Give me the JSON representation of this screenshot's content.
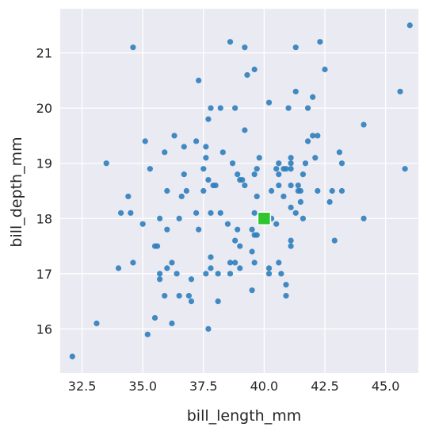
{
  "chart_data": {
    "type": "scatter",
    "xlabel": "bill_length_mm",
    "ylabel": "bill_depth_mm",
    "xlim": [
      31.6,
      46.35
    ],
    "ylim": [
      15.2,
      21.8
    ],
    "xticks": [
      32.5,
      35.0,
      37.5,
      40.0,
      42.5,
      45.0
    ],
    "xtick_labels": [
      "32.5",
      "35.0",
      "37.5",
      "40.0",
      "42.5",
      "45.0"
    ],
    "yticks": [
      16,
      17,
      18,
      19,
      20,
      21
    ],
    "ytick_labels": [
      "16",
      "17",
      "18",
      "19",
      "20",
      "21"
    ],
    "grid": true,
    "background": "#eaeaf2",
    "point_color": "#2f7ebc",
    "highlight_color": "#2ec52e",
    "highlight": {
      "x": 40.0,
      "y": 18.0
    },
    "points": [
      [
        32.1,
        15.5
      ],
      [
        33.1,
        16.1
      ],
      [
        33.5,
        19.0
      ],
      [
        34.0,
        17.1
      ],
      [
        34.1,
        18.1
      ],
      [
        34.4,
        18.4
      ],
      [
        34.5,
        18.1
      ],
      [
        34.6,
        17.2
      ],
      [
        34.6,
        21.1
      ],
      [
        35.0,
        17.9
      ],
      [
        35.1,
        19.4
      ],
      [
        35.2,
        15.9
      ],
      [
        35.3,
        18.9
      ],
      [
        35.5,
        16.2
      ],
      [
        35.5,
        17.5
      ],
      [
        35.6,
        17.5
      ],
      [
        35.7,
        16.9
      ],
      [
        35.7,
        17.0
      ],
      [
        35.7,
        18.0
      ],
      [
        35.9,
        16.6
      ],
      [
        35.9,
        19.2
      ],
      [
        36.0,
        17.1
      ],
      [
        36.0,
        17.8
      ],
      [
        36.0,
        18.5
      ],
      [
        36.2,
        16.1
      ],
      [
        36.2,
        17.2
      ],
      [
        36.3,
        19.5
      ],
      [
        36.4,
        17.0
      ],
      [
        36.5,
        16.6
      ],
      [
        36.5,
        18.0
      ],
      [
        36.6,
        18.4
      ],
      [
        36.7,
        18.8
      ],
      [
        36.7,
        19.3
      ],
      [
        36.8,
        18.5
      ],
      [
        36.9,
        16.6
      ],
      [
        37.0,
        16.5
      ],
      [
        37.0,
        16.9
      ],
      [
        37.2,
        18.1
      ],
      [
        37.2,
        19.4
      ],
      [
        37.3,
        17.8
      ],
      [
        37.3,
        20.5
      ],
      [
        37.5,
        18.5
      ],
      [
        37.5,
        18.9
      ],
      [
        37.6,
        17.0
      ],
      [
        37.6,
        19.1
      ],
      [
        37.6,
        19.3
      ],
      [
        37.7,
        16.0
      ],
      [
        37.7,
        18.7
      ],
      [
        37.7,
        19.8
      ],
      [
        37.8,
        17.1
      ],
      [
        37.8,
        17.3
      ],
      [
        37.8,
        18.1
      ],
      [
        37.8,
        20.0
      ],
      [
        37.9,
        18.6
      ],
      [
        38.0,
        18.6
      ],
      [
        38.1,
        16.5
      ],
      [
        38.1,
        17.0
      ],
      [
        38.2,
        18.1
      ],
      [
        38.2,
        20.0
      ],
      [
        38.3,
        19.2
      ],
      [
        38.5,
        17.9
      ],
      [
        38.6,
        17.0
      ],
      [
        38.6,
        17.2
      ],
      [
        38.6,
        21.2
      ],
      [
        38.7,
        19.0
      ],
      [
        38.8,
        17.2
      ],
      [
        38.8,
        17.6
      ],
      [
        38.8,
        20.0
      ],
      [
        38.9,
        17.8
      ],
      [
        38.9,
        18.8
      ],
      [
        39.0,
        17.1
      ],
      [
        39.0,
        17.5
      ],
      [
        39.0,
        18.7
      ],
      [
        39.1,
        18.7
      ],
      [
        39.2,
        18.6
      ],
      [
        39.2,
        19.6
      ],
      [
        39.2,
        21.1
      ],
      [
        39.3,
        20.6
      ],
      [
        39.5,
        16.7
      ],
      [
        39.5,
        17.4
      ],
      [
        39.5,
        17.8
      ],
      [
        39.6,
        17.2
      ],
      [
        39.6,
        17.7
      ],
      [
        39.6,
        18.1
      ],
      [
        39.6,
        18.8
      ],
      [
        39.6,
        20.7
      ],
      [
        39.7,
        17.7
      ],
      [
        39.7,
        18.4
      ],
      [
        39.7,
        18.9
      ],
      [
        39.8,
        19.1
      ],
      [
        40.2,
        17.0
      ],
      [
        40.2,
        17.1
      ],
      [
        40.2,
        20.1
      ],
      [
        40.3,
        18.0
      ],
      [
        40.3,
        18.5
      ],
      [
        40.5,
        17.9
      ],
      [
        40.5,
        18.9
      ],
      [
        40.6,
        17.2
      ],
      [
        40.6,
        18.6
      ],
      [
        40.6,
        18.8
      ],
      [
        40.6,
        19.0
      ],
      [
        40.7,
        17.0
      ],
      [
        40.8,
        18.4
      ],
      [
        40.8,
        18.9
      ],
      [
        40.9,
        16.6
      ],
      [
        40.9,
        16.8
      ],
      [
        40.9,
        18.9
      ],
      [
        41.0,
        20.0
      ],
      [
        41.1,
        17.5
      ],
      [
        41.1,
        17.6
      ],
      [
        41.1,
        18.2
      ],
      [
        41.1,
        18.6
      ],
      [
        41.1,
        18.9
      ],
      [
        41.1,
        19.0
      ],
      [
        41.1,
        19.1
      ],
      [
        41.3,
        18.1
      ],
      [
        41.3,
        20.3
      ],
      [
        41.3,
        21.1
      ],
      [
        41.4,
        18.5
      ],
      [
        41.4,
        18.6
      ],
      [
        41.5,
        18.3
      ],
      [
        41.5,
        18.5
      ],
      [
        41.6,
        18.0
      ],
      [
        41.6,
        18.8
      ],
      [
        41.7,
        19.0
      ],
      [
        41.8,
        19.4
      ],
      [
        41.8,
        20.0
      ],
      [
        42.0,
        19.5
      ],
      [
        42.0,
        20.2
      ],
      [
        42.1,
        19.1
      ],
      [
        42.2,
        18.5
      ],
      [
        42.2,
        19.5
      ],
      [
        42.3,
        21.2
      ],
      [
        42.5,
        20.7
      ],
      [
        42.7,
        18.3
      ],
      [
        42.8,
        18.5
      ],
      [
        42.9,
        17.6
      ],
      [
        43.1,
        19.2
      ],
      [
        43.2,
        18.5
      ],
      [
        43.2,
        19.0
      ],
      [
        44.1,
        18.0
      ],
      [
        44.1,
        19.7
      ],
      [
        45.6,
        20.3
      ],
      [
        45.8,
        18.9
      ],
      [
        46.0,
        21.5
      ]
    ]
  }
}
